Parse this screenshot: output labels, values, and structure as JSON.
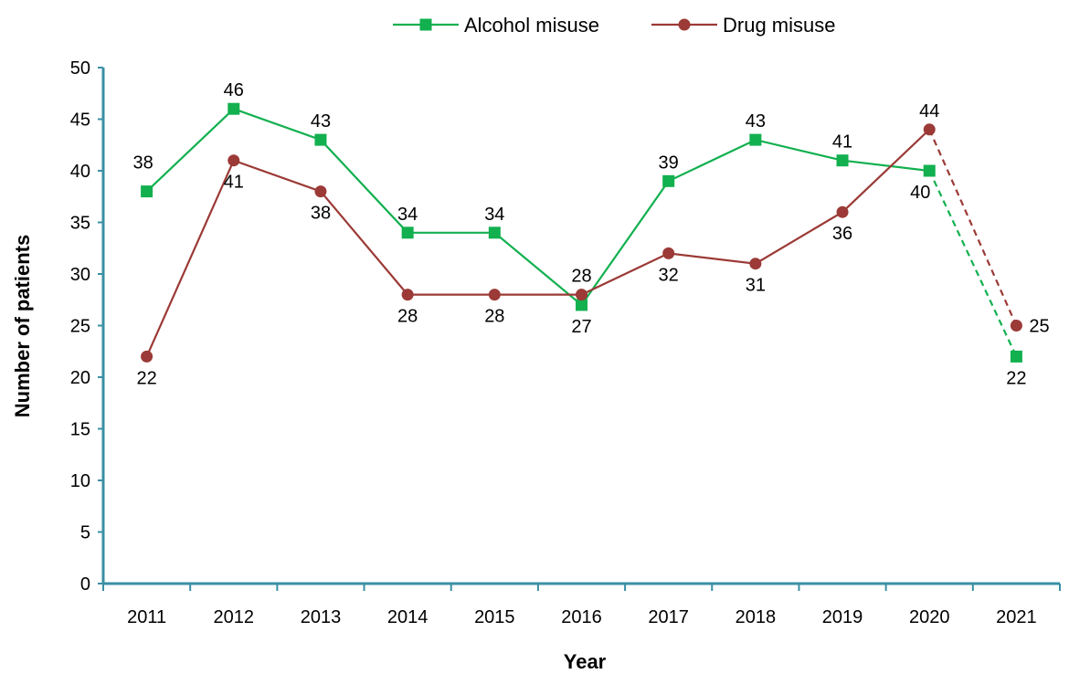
{
  "chart_data": {
    "type": "line",
    "title": "",
    "xlabel": "Year",
    "ylabel": "Number of patients",
    "categories": [
      "2011",
      "2012",
      "2013",
      "2014",
      "2015",
      "2016",
      "2017",
      "2018",
      "2019",
      "2020",
      "2021"
    ],
    "ylim": [
      0,
      50
    ],
    "yticks": [
      0,
      5,
      10,
      15,
      20,
      25,
      30,
      35,
      40,
      45,
      50
    ],
    "grid": false,
    "legend_position": "top-center",
    "axis_color": "#3a8fa5",
    "series": [
      {
        "name": "Alcohol misuse",
        "marker": "square",
        "color": "#12b04f",
        "values": [
          38,
          46,
          43,
          34,
          34,
          27,
          39,
          43,
          41,
          40,
          22
        ],
        "dashed_from": "2020"
      },
      {
        "name": "Drug misuse",
        "marker": "circle",
        "color": "#9b3a36",
        "values": [
          22,
          41,
          38,
          28,
          28,
          28,
          32,
          31,
          36,
          44,
          25
        ],
        "dashed_from": "2020"
      }
    ]
  }
}
